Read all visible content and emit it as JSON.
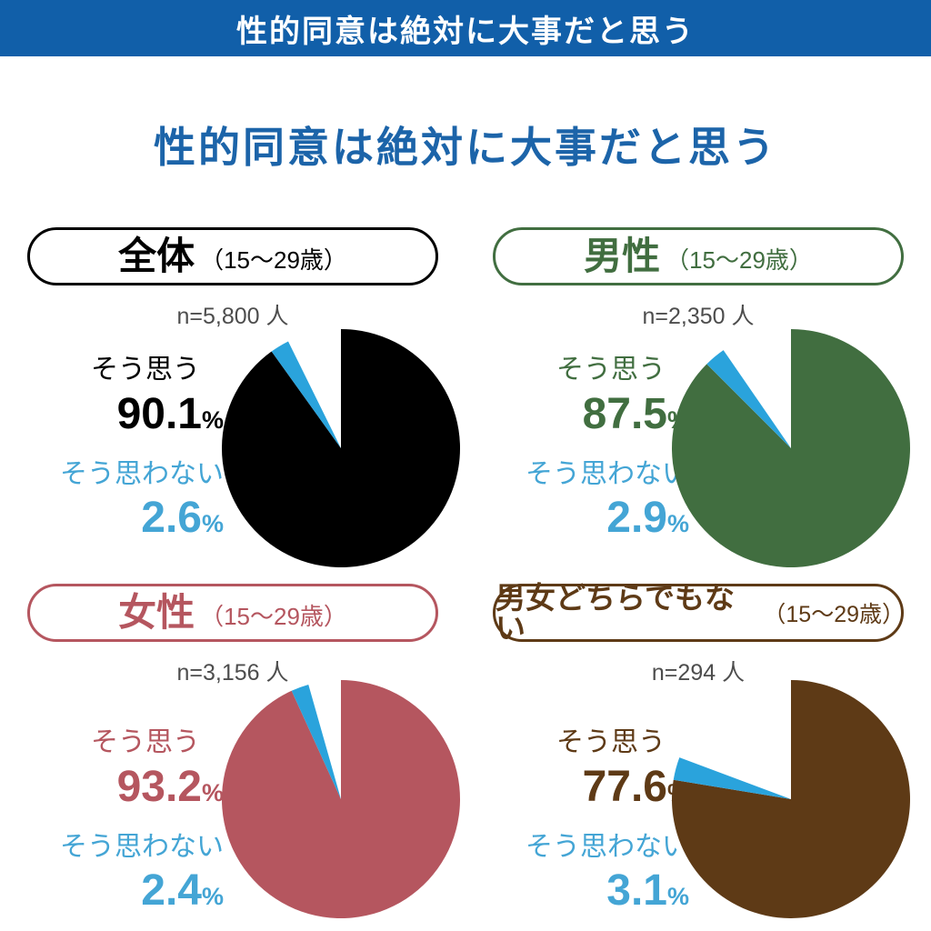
{
  "banner": {
    "title": "性的同意は絶対に大事だと思う"
  },
  "page_title": "性的同意は絶対に大事だと思う",
  "shared_labels": {
    "agree": "そう思う",
    "disagree": "そう思わない",
    "percent": "%"
  },
  "colors": {
    "banner_bg": "#115fa9",
    "title_blue": "#1c64a9",
    "disagree_slice_blue": "#2aa3dc",
    "disagree_text_blue": "#44a5d5",
    "sample_gray": "#4d4d4d"
  },
  "groups": [
    {
      "name": "全体",
      "age_note": "（15～29歳）",
      "sample": "n=5,800 人",
      "accent": "#000000",
      "agree_value": "90.1",
      "disagree_value": "2.6"
    },
    {
      "name": "男性",
      "age_note": "（15～29歳）",
      "sample": "n=2,350 人",
      "accent": "#416e40",
      "agree_value": "87.5",
      "disagree_value": "2.9"
    },
    {
      "name": "女性",
      "age_note": "（15～29歳）",
      "sample": "n=3,156 人",
      "accent": "#b5565f",
      "agree_value": "93.2",
      "disagree_value": "2.4"
    },
    {
      "name": "男女どちらでもない",
      "age_note": "（15～29歳）",
      "sample": "n=294 人",
      "accent": "#5e3a16",
      "agree_value": "77.6",
      "disagree_value": "3.1"
    }
  ],
  "chart_data": [
    {
      "type": "pie",
      "title": "全体（15～29歳）",
      "n": 5800,
      "start_angle": "top",
      "direction": "clockwise",
      "slices": [
        {
          "label": "そう思う",
          "value": 90.1,
          "color": "#000000"
        },
        {
          "label": "そう思わない",
          "value": 2.6,
          "color": "#2aa3dc"
        },
        {
          "label": "",
          "value": 7.3,
          "color": "#ffffff"
        }
      ]
    },
    {
      "type": "pie",
      "title": "男性（15～29歳）",
      "n": 2350,
      "start_angle": "top",
      "direction": "clockwise",
      "slices": [
        {
          "label": "そう思う",
          "value": 87.5,
          "color": "#416e40"
        },
        {
          "label": "そう思わない",
          "value": 2.9,
          "color": "#2aa3dc"
        },
        {
          "label": "",
          "value": 9.6,
          "color": "#ffffff"
        }
      ]
    },
    {
      "type": "pie",
      "title": "女性（15～29歳）",
      "n": 3156,
      "start_angle": "top",
      "direction": "clockwise",
      "slices": [
        {
          "label": "そう思う",
          "value": 93.2,
          "color": "#b5565f"
        },
        {
          "label": "そう思わない",
          "value": 2.4,
          "color": "#2aa3dc"
        },
        {
          "label": "",
          "value": 4.4,
          "color": "#ffffff"
        }
      ]
    },
    {
      "type": "pie",
      "title": "男女どちらでもない（15～29歳）",
      "n": 294,
      "start_angle": "top",
      "direction": "clockwise",
      "slices": [
        {
          "label": "そう思う",
          "value": 77.6,
          "color": "#5e3a16"
        },
        {
          "label": "そう思わない",
          "value": 3.1,
          "color": "#2aa3dc"
        },
        {
          "label": "",
          "value": 19.3,
          "color": "#ffffff"
        }
      ]
    }
  ]
}
